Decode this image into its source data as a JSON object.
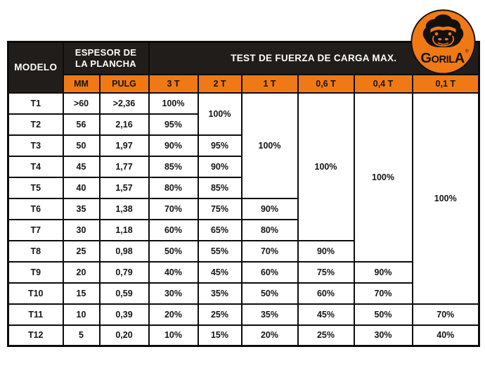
{
  "colors": {
    "orange": "#F07915",
    "header_black": "#211D1A",
    "border_black": "#0D0D0D",
    "separator_white": "#FFFFFF",
    "header_text": "#FFFFFF",
    "cell_text": "#141414"
  },
  "logo": {
    "brand_first": "G",
    "brand_mid": "ORIL",
    "brand_last": "A",
    "registered": "®"
  },
  "table": {
    "header": {
      "modelo": "MODELO",
      "espesor_line1": "ESPESOR DE",
      "espesor_line2": "LA PLANCHA",
      "test": "TEST DE FUERZA DE CARGA MAX.",
      "sub_columns": [
        "MM",
        "PULG",
        "3 T",
        "2 T",
        "1 T",
        "0,6 T",
        "0,4 T",
        "0,1 T"
      ]
    },
    "rows": [
      [
        "T1",
        ">60",
        ">2,36",
        "100%",
        {
          "v": "100%",
          "rs": 2
        },
        {
          "v": "100%",
          "rs": 5
        },
        {
          "v": "100%",
          "rs": 7
        },
        {
          "v": "100%",
          "rs": 8
        },
        {
          "v": "100%",
          "rs": 10
        }
      ],
      [
        "T2",
        "56",
        "2,16",
        "95%"
      ],
      [
        "T3",
        "50",
        "1,97",
        "90%",
        "95%"
      ],
      [
        "T4",
        "45",
        "1,77",
        "85%",
        "90%"
      ],
      [
        "T5",
        "40",
        "1,57",
        "80%",
        "85%"
      ],
      [
        "T6",
        "35",
        "1,38",
        "70%",
        "75%",
        "90%"
      ],
      [
        "T7",
        "30",
        "1,18",
        "60%",
        "65%",
        "80%"
      ],
      [
        "T8",
        "25",
        "0,98",
        "50%",
        "55%",
        "70%",
        "90%"
      ],
      [
        "T9",
        "20",
        "0,79",
        "40%",
        "45%",
        "60%",
        "75%",
        "90%"
      ],
      [
        "T10",
        "15",
        "0,59",
        "30%",
        "35%",
        "50%",
        "60%",
        "70%"
      ],
      [
        "T11",
        "10",
        "0,39",
        "20%",
        "25%",
        "35%",
        "45%",
        "50%",
        "70%"
      ],
      [
        "T12",
        "5",
        "0,20",
        "10%",
        "15%",
        "20%",
        "25%",
        "30%",
        "40%"
      ]
    ]
  }
}
